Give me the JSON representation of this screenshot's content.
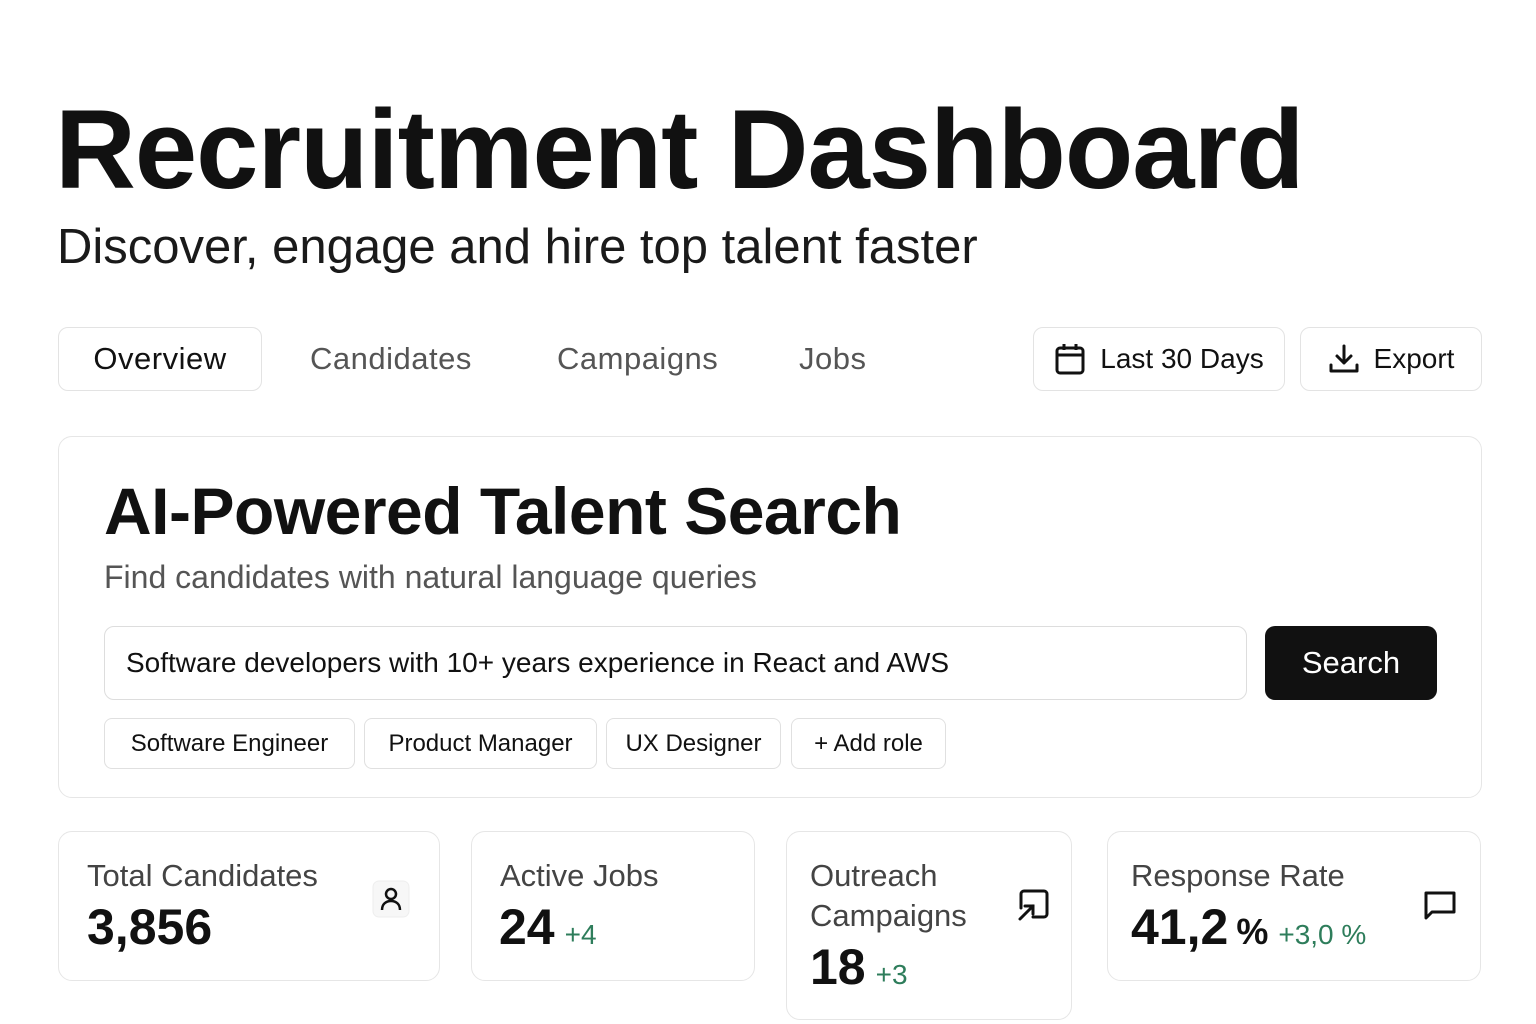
{
  "header": {
    "title": "Recruitment Dashboard",
    "subtitle": "Discover, engage and hire top talent faster"
  },
  "tabs": [
    {
      "label": "Overview",
      "active": true
    },
    {
      "label": "Candidates"
    },
    {
      "label": "Campaigns"
    },
    {
      "label": "Jobs"
    }
  ],
  "actions": {
    "date_range": "Last 30 Days",
    "export": "Export"
  },
  "search": {
    "heading": "AI-Powered Talent Search",
    "subtitle": "Find candidates with natural language queries",
    "query": "Software developers with 10+ years experience in React and AWS",
    "button": "Search",
    "chips": [
      "Software Engineer",
      "Product Manager",
      "UX Designer",
      "+ Add role"
    ]
  },
  "stats": [
    {
      "label": "Total Candidates",
      "value": "3,856",
      "icon": "user-icon"
    },
    {
      "label": "Active Jobs",
      "value": "24",
      "delta": "+4"
    },
    {
      "label": "Outreach Campaigns",
      "value": "18",
      "delta": "+3",
      "icon": "send-icon"
    },
    {
      "label": "Response Rate",
      "value": "41,2",
      "unit": "%",
      "delta": "+3,0 %",
      "icon": "message-icon"
    }
  ],
  "colors": {
    "accent": "#111111",
    "positive": "#2e7d5b"
  }
}
